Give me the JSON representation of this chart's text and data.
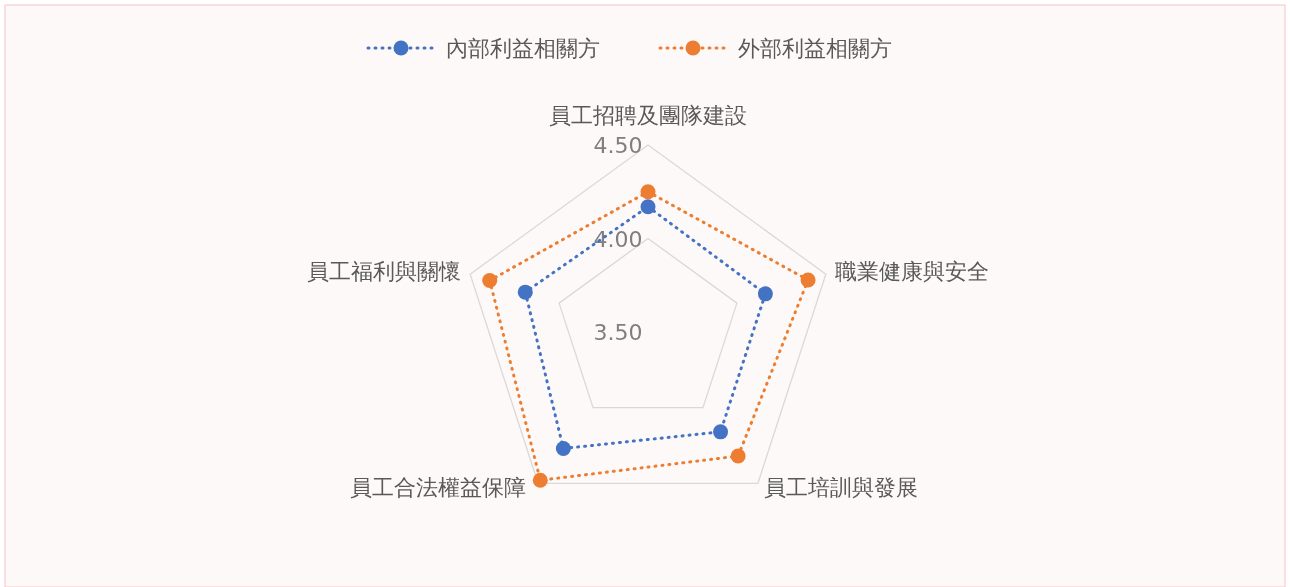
{
  "chart_data": {
    "type": "radar",
    "categories": [
      "員工招聘及團隊建設",
      "職業健康與安全",
      "員工培訓與發展",
      "員工合法權益保障",
      "員工福利與關懷"
    ],
    "series": [
      {
        "name": "內部利益相關方",
        "color": "#4472c4",
        "values": [
          4.17,
          4.16,
          4.16,
          4.27,
          4.19
        ]
      },
      {
        "name": "外部利益相關方",
        "color": "#ed7d31",
        "values": [
          4.25,
          4.4,
          4.32,
          4.48,
          4.39
        ]
      }
    ],
    "ylim": [
      3.5,
      4.5
    ],
    "yticks": [
      {
        "value": 3.5,
        "label": "3.50"
      },
      {
        "value": 4.0,
        "label": "4.00"
      },
      {
        "value": 4.5,
        "label": "4.50"
      }
    ],
    "grid": true,
    "legend": "top",
    "marker": "circle",
    "line_style": "dotted"
  }
}
